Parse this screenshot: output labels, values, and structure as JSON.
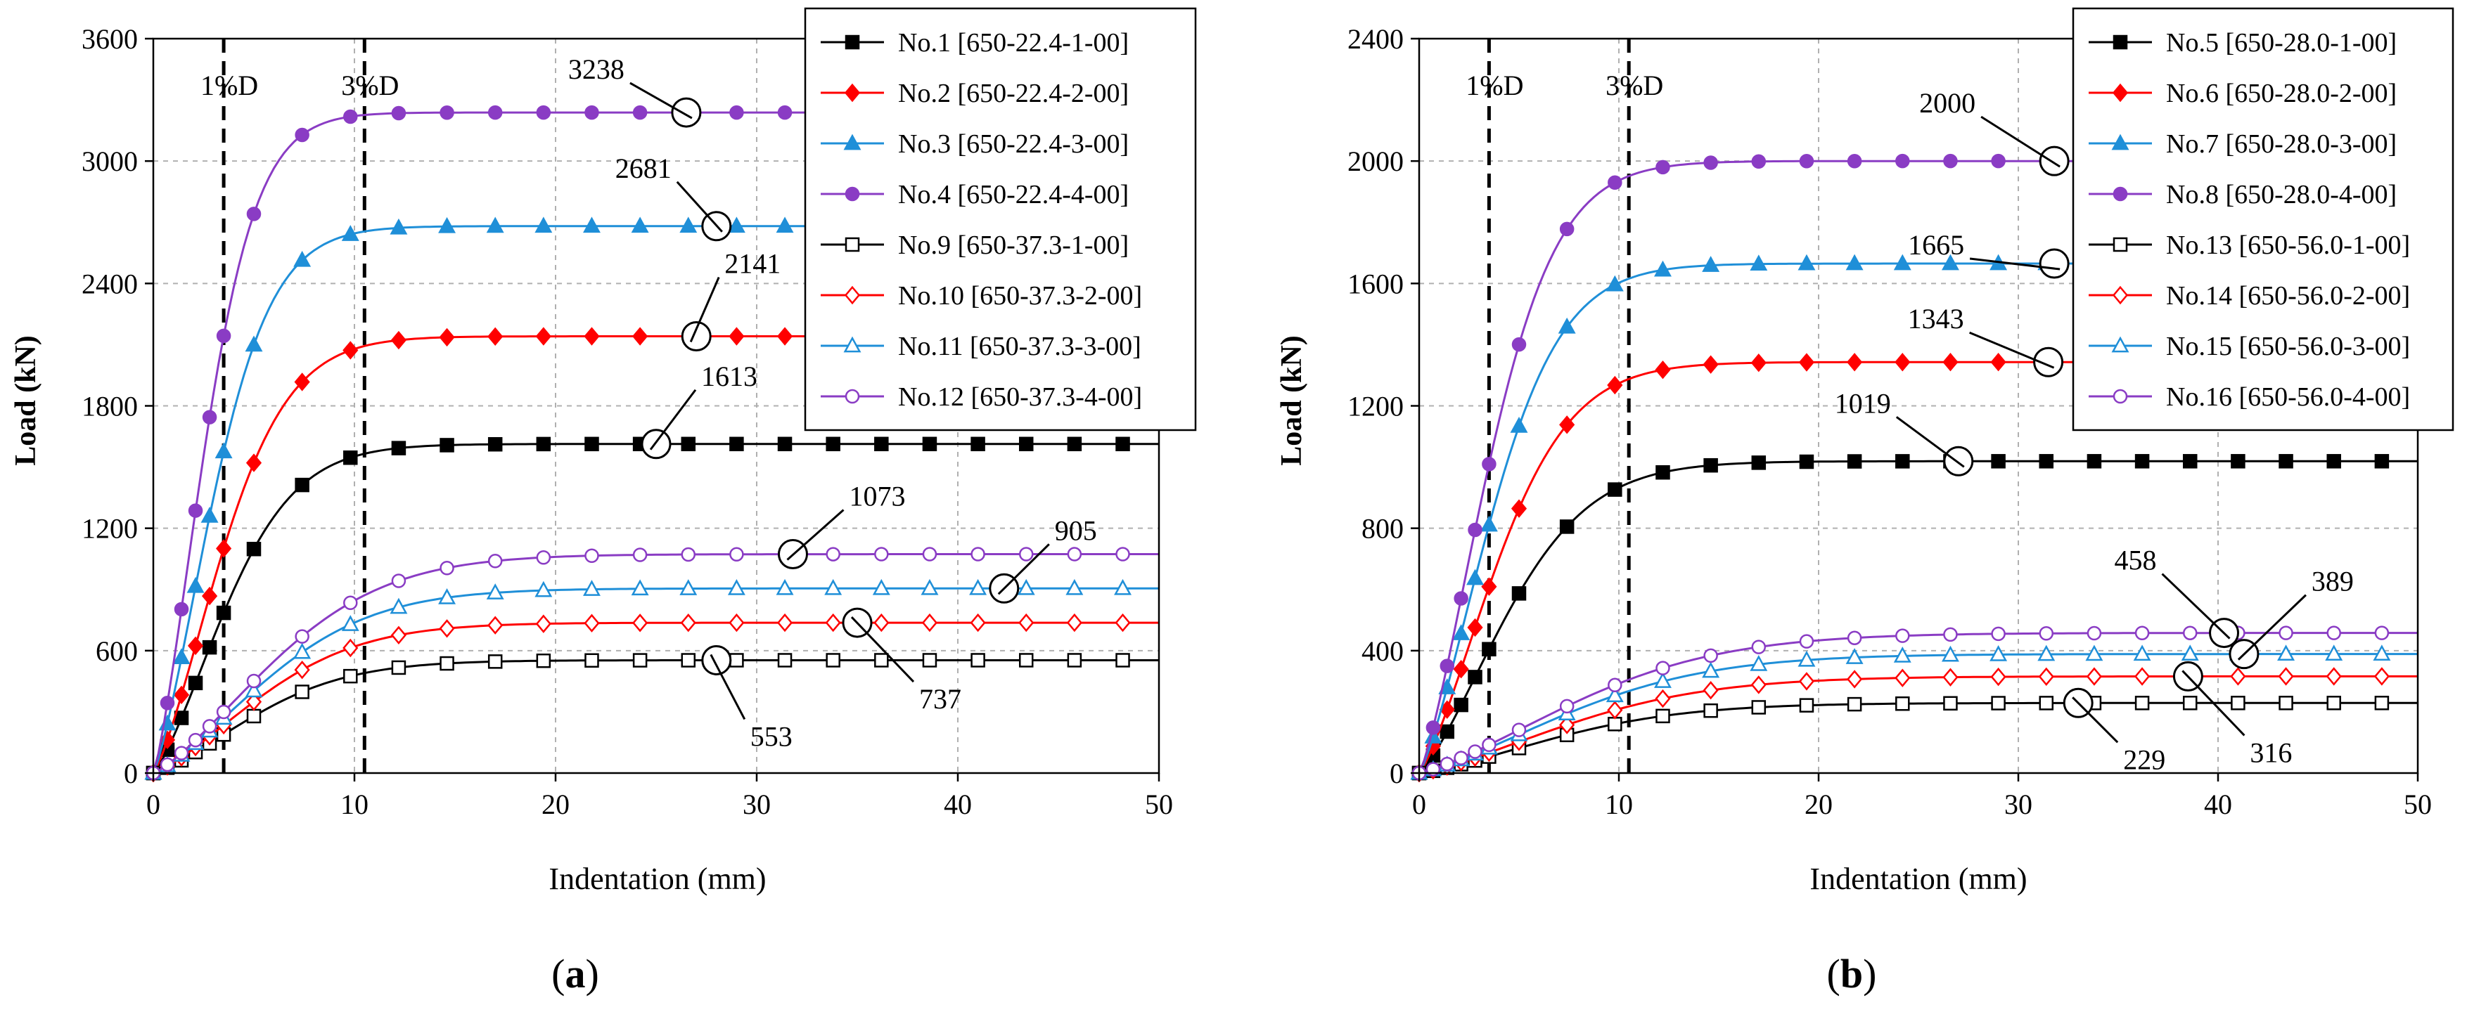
{
  "chart_data": [
    {
      "type": "line",
      "id": "a",
      "panel_label": "(a)",
      "panel_letter": "a",
      "xlabel": "Indentation (mm)",
      "ylabel": "Load (kN)",
      "xlim": [
        0,
        50
      ],
      "ylim": [
        0,
        3600
      ],
      "xticks": [
        0,
        10,
        20,
        30,
        40,
        50
      ],
      "yticks": [
        0,
        600,
        1200,
        1800,
        2400,
        3000,
        3600
      ],
      "grid": true,
      "legend_position": "top-right",
      "vlines": [
        {
          "x": 3.5,
          "label": "1%D"
        },
        {
          "x": 10.5,
          "label": "3%D"
        }
      ],
      "series": [
        {
          "name": "No.1 [650-22.4-1-00]",
          "color": "#000000",
          "marker": "square",
          "filled": true,
          "peak": 1613,
          "k": 5.8
        },
        {
          "name": "No.2 [650-22.4-2-00]",
          "color": "#ff0000",
          "marker": "diamond",
          "filled": true,
          "peak": 2141,
          "k": 5.5
        },
        {
          "name": "No.3 [650-22.4-3-00]",
          "color": "#1f8fd8",
          "marker": "triangle",
          "filled": true,
          "peak": 2681,
          "k": 4.8
        },
        {
          "name": "No.4 [650-22.4-4-00]",
          "color": "#8a3cc4",
          "marker": "circle",
          "filled": true,
          "peak": 3238,
          "k": 4.2
        },
        {
          "name": "No.9 [650-37.3-1-00]",
          "color": "#000000",
          "marker": "square",
          "filled": false,
          "peak": 553,
          "k": 8.0
        },
        {
          "name": "No.10 [650-37.3-2-00]",
          "color": "#ff0000",
          "marker": "diamond",
          "filled": false,
          "peak": 737,
          "k": 8.5
        },
        {
          "name": "No.11 [650-37.3-3-00]",
          "color": "#1f8fd8",
          "marker": "triangle",
          "filled": false,
          "peak": 905,
          "k": 9.0
        },
        {
          "name": "No.12 [650-37.3-4-00]",
          "color": "#8a3cc4",
          "marker": "circle",
          "filled": false,
          "peak": 1073,
          "k": 9.5
        }
      ],
      "annotations": [
        {
          "text": "3238",
          "x": 26.5,
          "y": 3238
        },
        {
          "text": "2681",
          "x": 28.0,
          "y": 2681
        },
        {
          "text": "2141",
          "x": 27.0,
          "y": 2141
        },
        {
          "text": "1613",
          "x": 25.0,
          "y": 1613
        },
        {
          "text": "1073",
          "x": 31.8,
          "y": 1073
        },
        {
          "text": "905",
          "x": 42.3,
          "y": 905
        },
        {
          "text": "737",
          "x": 35.0,
          "y": 737
        },
        {
          "text": "553",
          "x": 28.0,
          "y": 553
        }
      ]
    },
    {
      "type": "line",
      "id": "b",
      "panel_label": "(b)",
      "panel_letter": "b",
      "xlabel": "Indentation (mm)",
      "ylabel": "Load (kN)",
      "xlim": [
        0,
        50
      ],
      "ylim": [
        0,
        2400
      ],
      "xticks": [
        0,
        10,
        20,
        30,
        40,
        50
      ],
      "yticks": [
        0,
        400,
        800,
        1200,
        1600,
        2000,
        2400
      ],
      "grid": true,
      "legend_position": "top-right",
      "vlines": [
        {
          "x": 3.5,
          "label": "1%D"
        },
        {
          "x": 10.5,
          "label": "3%D"
        }
      ],
      "series": [
        {
          "name": "No.5 [650-28.0-1-00]",
          "color": "#000000",
          "marker": "square",
          "filled": true,
          "peak": 1019,
          "k": 7.0
        },
        {
          "name": "No.6 [650-28.0-2-00]",
          "color": "#ff0000",
          "marker": "diamond",
          "filled": true,
          "peak": 1343,
          "k": 6.2
        },
        {
          "name": "No.7 [650-28.0-3-00]",
          "color": "#1f8fd8",
          "marker": "triangle",
          "filled": true,
          "peak": 1665,
          "k": 5.8
        },
        {
          "name": "No.8 [650-28.0-4-00]",
          "color": "#8a3cc4",
          "marker": "circle",
          "filled": true,
          "peak": 2000,
          "k": 5.6
        },
        {
          "name": "No.13 [650-56.0-1-00]",
          "color": "#000000",
          "marker": "square",
          "filled": false,
          "peak": 229,
          "k": 11.0
        },
        {
          "name": "No.14 [650-56.0-2-00]",
          "color": "#ff0000",
          "marker": "diamond",
          "filled": false,
          "peak": 316,
          "k": 12.0
        },
        {
          "name": "No.15 [650-56.0-3-00]",
          "color": "#1f8fd8",
          "marker": "triangle",
          "filled": false,
          "peak": 389,
          "k": 12.0
        },
        {
          "name": "No.16 [650-56.0-4-00]",
          "color": "#8a3cc4",
          "marker": "circle",
          "filled": false,
          "peak": 458,
          "k": 12.5
        }
      ],
      "annotations": [
        {
          "text": "2000",
          "x": 31.8,
          "y": 2000
        },
        {
          "text": "1665",
          "x": 31.8,
          "y": 1665
        },
        {
          "text": "1343",
          "x": 31.5,
          "y": 1343
        },
        {
          "text": "1019",
          "x": 27.0,
          "y": 1019
        },
        {
          "text": "458",
          "x": 40.3,
          "y": 458
        },
        {
          "text": "389",
          "x": 41.3,
          "y": 389
        },
        {
          "text": "229",
          "x": 33.0,
          "y": 229
        },
        {
          "text": "316",
          "x": 38.5,
          "y": 316
        }
      ]
    }
  ]
}
